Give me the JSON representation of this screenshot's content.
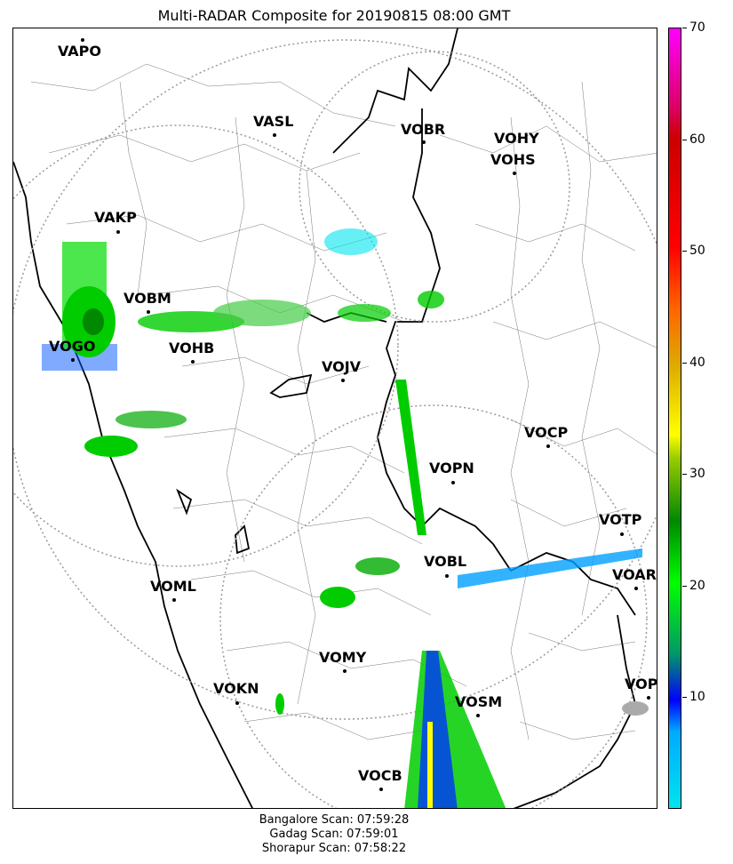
{
  "title": "Multi-RADAR Composite for 20190815 08:00 GMT",
  "stations": [
    {
      "name": "VAPO"
    },
    {
      "name": "VASL"
    },
    {
      "name": "VOBR"
    },
    {
      "name": "VOHY"
    },
    {
      "name": "VOHS"
    },
    {
      "name": "VAKP"
    },
    {
      "name": "VOBM"
    },
    {
      "name": "VOGO"
    },
    {
      "name": "VOHB"
    },
    {
      "name": "VOJV"
    },
    {
      "name": "VOCP"
    },
    {
      "name": "VOPN"
    },
    {
      "name": "VOTP"
    },
    {
      "name": "VOBL"
    },
    {
      "name": "VOAR"
    },
    {
      "name": "VOML"
    },
    {
      "name": "VOMY"
    },
    {
      "name": "VOKN"
    },
    {
      "name": "VOSM"
    },
    {
      "name": "VOPC"
    },
    {
      "name": "VOCB"
    }
  ],
  "colorbar": {
    "min": 0,
    "max": 70,
    "ticks": [
      "10",
      "20",
      "30",
      "40",
      "50",
      "60",
      "70"
    ]
  },
  "footer": {
    "line1": "Bangalore Scan: 07:59:28",
    "line2": "Gadag Scan: 07:59:01",
    "line3": "Shorapur Scan: 07:58:22"
  },
  "colors": {
    "light_cyan": "#00e5ee",
    "blue": "#0000ff",
    "green": "#00dd00",
    "dark_green": "#008800",
    "yellow": "#ffff00",
    "orange": "#ff9900",
    "red": "#dd0000",
    "magenta": "#ff00ff"
  }
}
